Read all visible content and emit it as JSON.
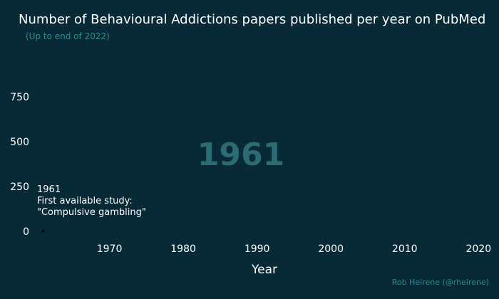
{
  "chart_data": {
    "type": "line",
    "title": "Number of Behavioural Addictions papers published per year on PubMed",
    "subtitle": "(Up to end of 2022)",
    "xlabel": "Year",
    "ylabel": "",
    "xlim": [
      1960,
      2022
    ],
    "ylim": [
      0,
      850
    ],
    "x_ticks": [
      1970,
      1980,
      1990,
      2000,
      2010,
      2020
    ],
    "y_ticks": [
      0,
      250,
      500,
      750
    ],
    "series": [
      {
        "points": [
          {
            "x": 1961,
            "y": 1
          }
        ]
      }
    ],
    "watermark_year": "1961",
    "annotation": {
      "year": "1961",
      "line1": "First available study:",
      "line2": "\"Compulsive gambling\""
    },
    "credit": "Rob Heirene (@rheirene)"
  },
  "colors": {
    "background": "#082a36",
    "accent": "#2f8a90",
    "watermark": "#2b6b74",
    "text": "#ffffff",
    "point": "#000000"
  }
}
